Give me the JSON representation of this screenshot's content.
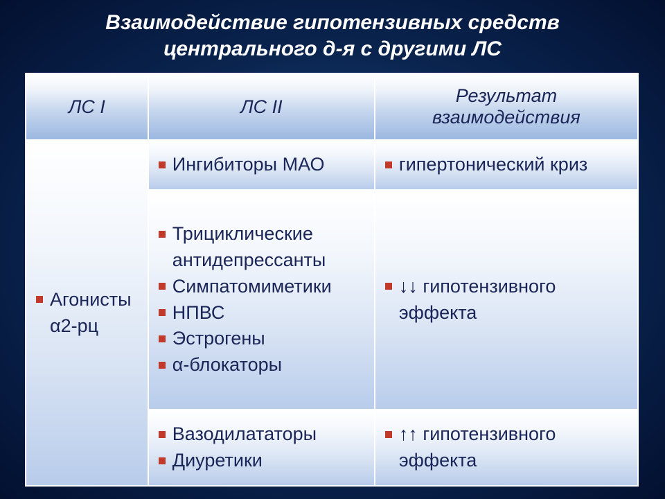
{
  "title_line1": "Взаимодействие гипотензивных  средств",
  "title_line2": "центрального д-я с другими ЛС",
  "headers": {
    "c1": "ЛС I",
    "c2": "ЛС II",
    "c3": "Результат взаимодействия"
  },
  "col1_merged": "Агонисты α2-рц",
  "rows": [
    {
      "ls2": [
        "Ингибиторы МАО"
      ],
      "result": [
        "гипертонический криз"
      ]
    },
    {
      "ls2": [
        "Трициклические антидепрессанты",
        "Симпатомиметики",
        "НПВС",
        "Эстрогены",
        "α-блокаторы"
      ],
      "result": [
        "↓↓ гипотензивного эффекта"
      ]
    },
    {
      "ls2": [
        "Вазодилататоры",
        "Диуретики"
      ],
      "result": [
        "↑↑ гипотензивного эффекта"
      ]
    }
  ],
  "style": {
    "bullet_color": "#c0392b",
    "text_color": "#1a2558",
    "result_color": "#1b7a2c",
    "title_color": "#ffffff",
    "cell_gradient": [
      "#ffffff",
      "#b8cceb"
    ],
    "header_gradient": [
      "#ffffff",
      "#9bb8e0"
    ],
    "background_gradient": [
      "#2a5a9e",
      "#031030"
    ],
    "title_fontsize": 30,
    "header_fontsize": 27,
    "body_fontsize": 27,
    "col_widths_pct": [
      20,
      37,
      43
    ]
  }
}
